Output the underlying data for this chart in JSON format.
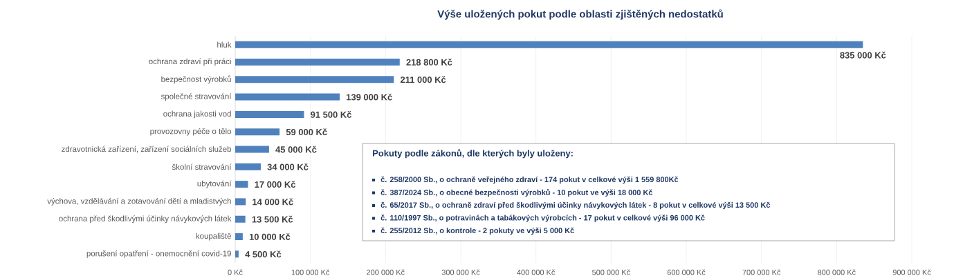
{
  "chart_data": {
    "type": "bar",
    "orientation": "horizontal",
    "title": "Výše uložených pokut podle oblasti zjištěných nedostatků",
    "categories": [
      "hluk",
      "ochrana zdraví při práci",
      "bezpečnost výrobků",
      "společné stravování",
      "ochrana jakosti vod",
      "provozovny péče o tělo",
      "zdravotnická zařízení, zařízení sociálních služeb",
      "školní stravování",
      "ubytování",
      "výchova, vzdělávání a zotavování dětí a mladistvých",
      "ochrana před škodlivými účinky návykových látek",
      "koupaliště",
      "porušení opatření - onemocnění covid-19"
    ],
    "values": [
      835000,
      218800,
      211000,
      139000,
      91500,
      59000,
      45000,
      34000,
      17000,
      14000,
      13500,
      10000,
      4500
    ],
    "value_labels": [
      "835 000 Kč",
      "218 800 Kč",
      "211 000 Kč",
      "139 000 Kč",
      "91 500 Kč",
      "59 000 Kč",
      "45 000 Kč",
      "34 000 Kč",
      "17 000 Kč",
      "14 000 Kč",
      "13 500 Kč",
      "10 000 Kč",
      "4 500 Kč"
    ],
    "color": "#4f81bd",
    "xlim": [
      0,
      900000
    ],
    "xticks": [
      {
        "value": 0,
        "label": "0 Kč"
      },
      {
        "value": 100000,
        "label": "100 000 Kč"
      },
      {
        "value": 200000,
        "label": "200 000 Kč"
      },
      {
        "value": 300000,
        "label": "300 000 Kč"
      },
      {
        "value": 400000,
        "label": "400 000 Kč"
      },
      {
        "value": 500000,
        "label": "500 000 Kč"
      },
      {
        "value": 600000,
        "label": "600 000 Kč"
      },
      {
        "value": 700000,
        "label": "700 000 Kč"
      },
      {
        "value": 800000,
        "label": "800 000 Kč"
      },
      {
        "value": 900000,
        "label": "900 000 Kč"
      }
    ],
    "grid": "x",
    "annotations": [
      "Pokuty podle zákonů, dle kterých byly uloženy:",
      "č. 258/2000 Sb., o ochraně veřejného zdraví - 174 pokut v celkové výši 1 559 800Kč",
      "č. 387/2024 Sb., o obecné bezpečnosti výrobků - 10 pokut ve výši 18 000 Kč",
      "č. 65/2017 Sb., o ochraně zdraví před škodlivými účinky návykových látek - 8 pokut v celkové výši 13 500 Kč",
      "č. 110/1997 Sb.,  o potravinách a tabákových výrobcích - 17 pokut v celkové výši 96 000 Kč",
      "č. 255/2012 Sb., o kontrole - 2 pokuty ve výši 5 000 Kč"
    ]
  }
}
